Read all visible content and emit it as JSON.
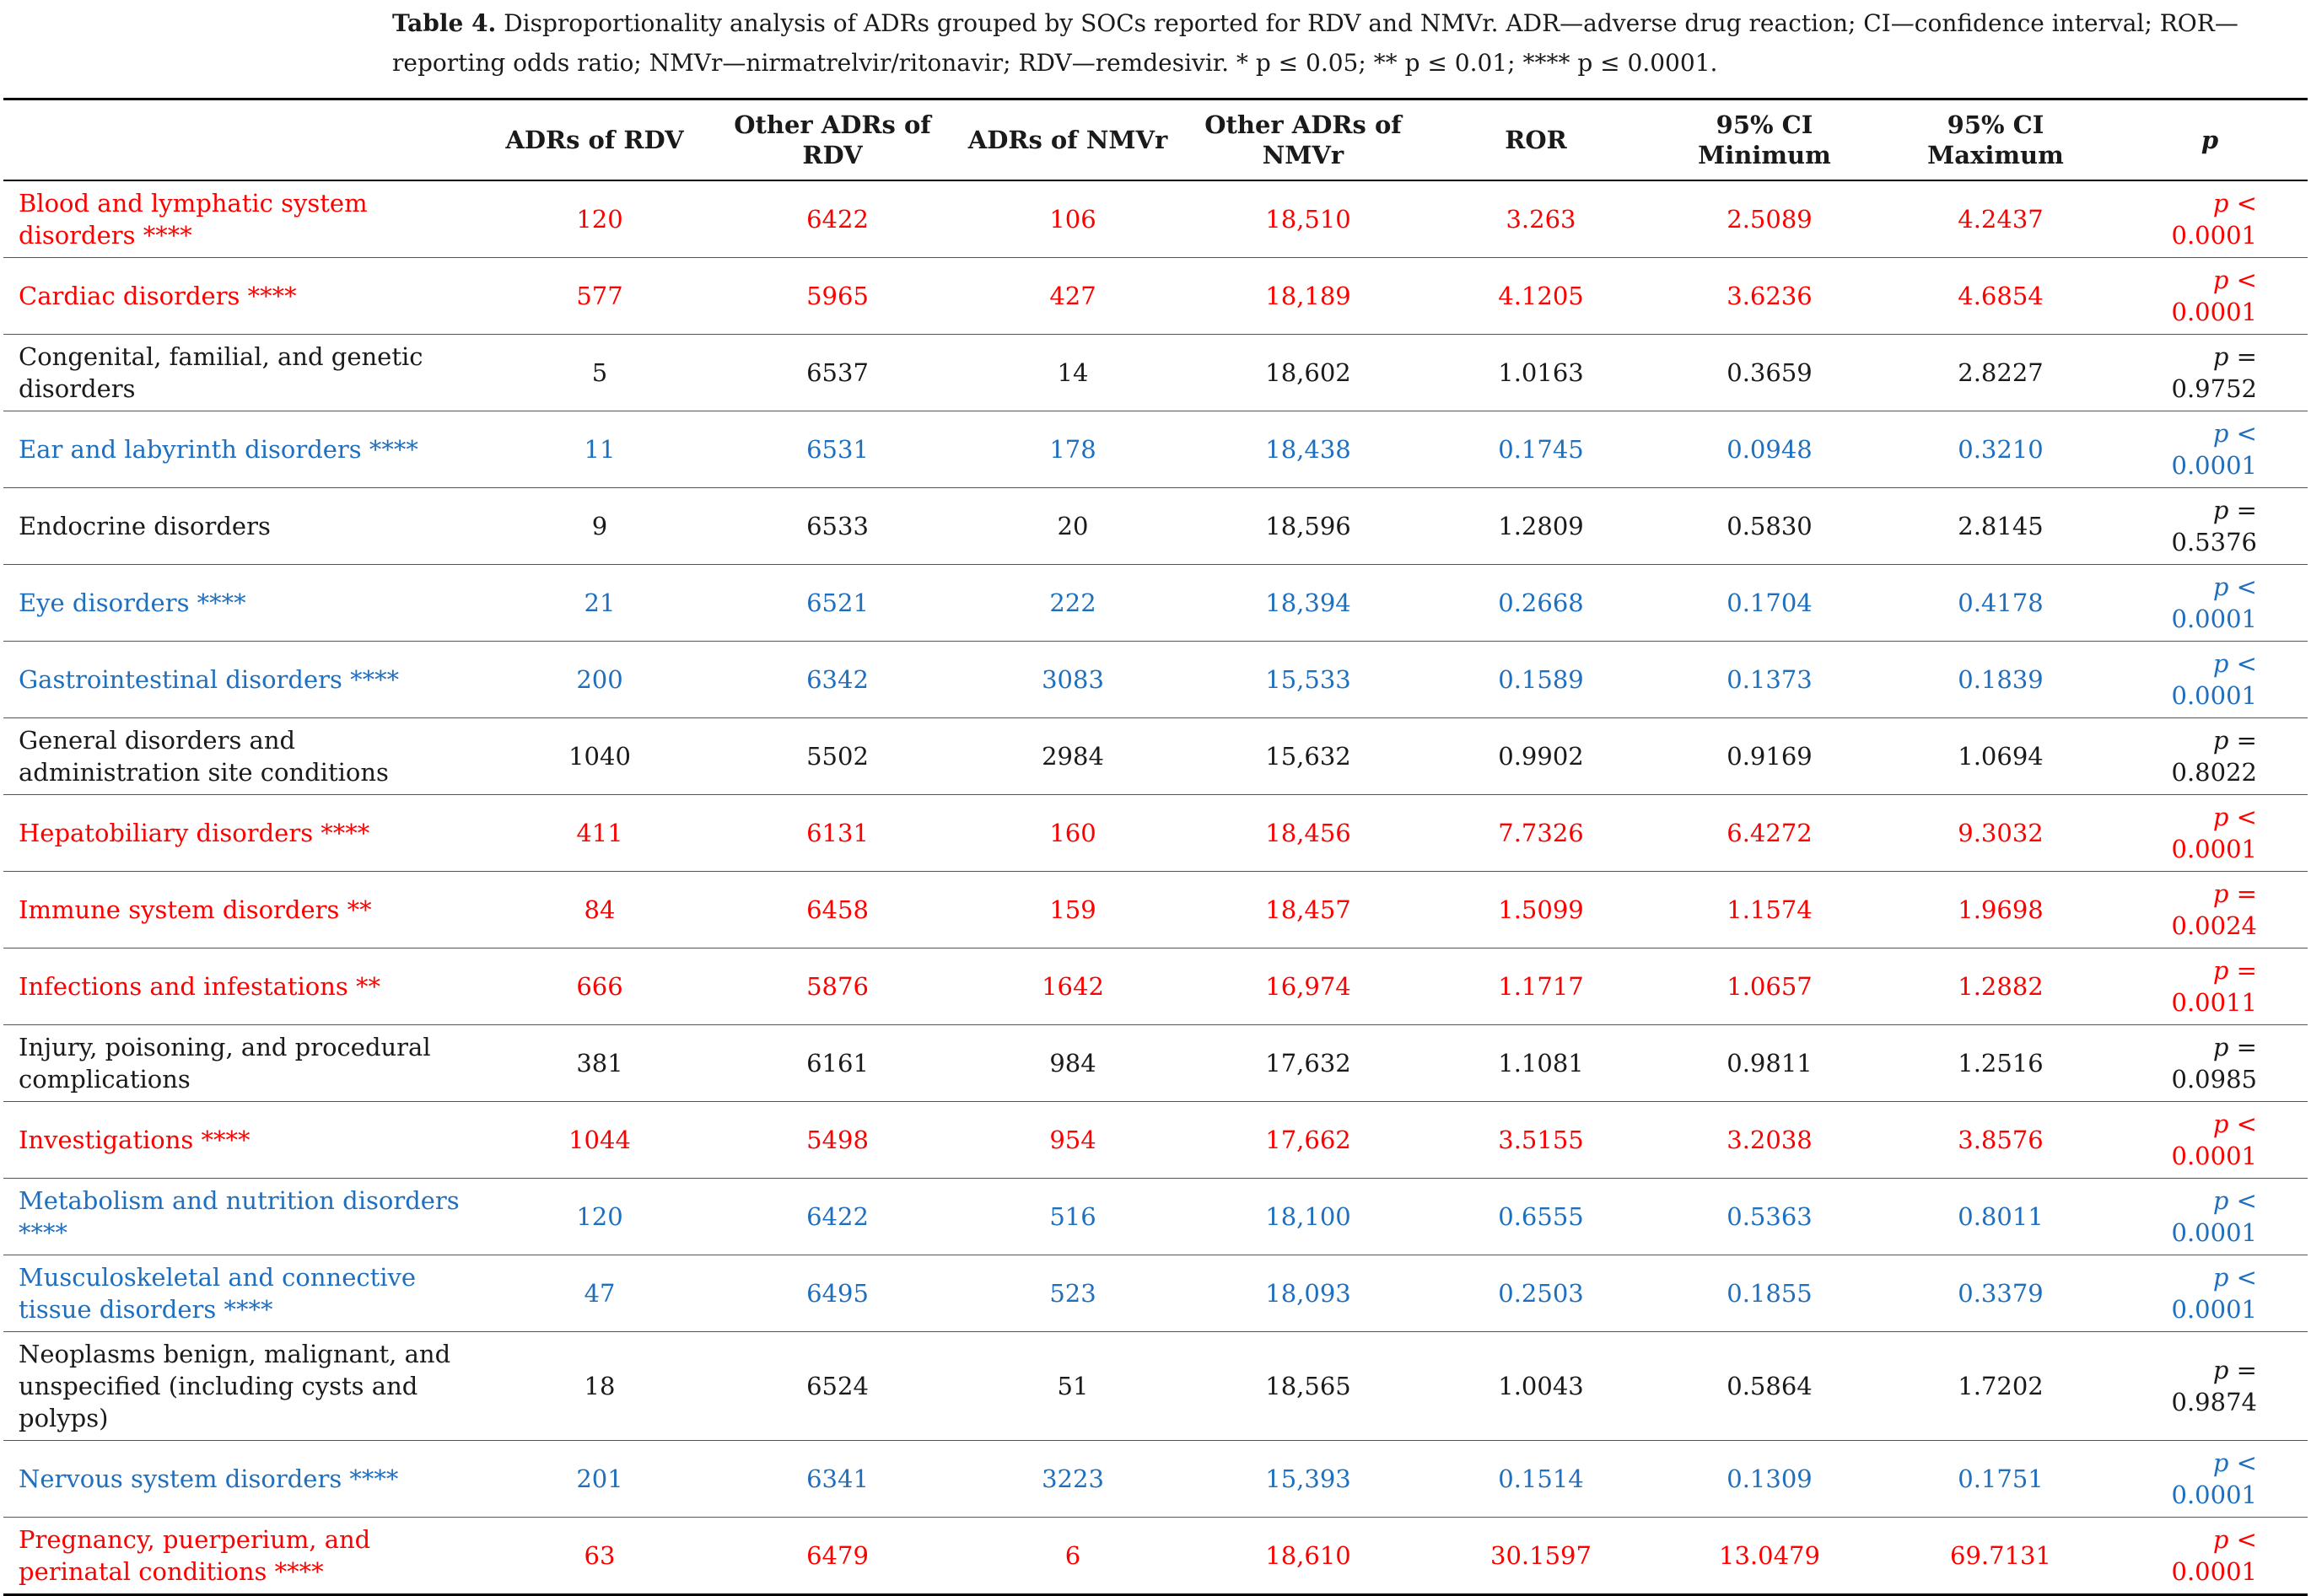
{
  "caption": {
    "label": "Table 4.",
    "text": " Disproportionality analysis of ADRs grouped by SOCs reported for RDV and NMVr. ADR—adverse drug reaction; CI—confidence interval; ROR—reporting odds ratio; NMVr—nirmatrelvir/ritonavir; RDV—remdesivir. * p ≤ 0.05; ** p ≤ 0.01; **** p ≤ 0.0001."
  },
  "colors": {
    "increased": "#ff0000",
    "decreased": "#1f6fbf",
    "neutral": "#1a1a1a"
  },
  "table": {
    "headers": [
      "",
      "ADRs of RDV",
      "Other ADRs of RDV",
      "ADRs of NMVr",
      "Other ADRs of NMVr",
      "ROR",
      "95% CI Minimum",
      "95% CI Maximum",
      "p"
    ],
    "rows": [
      {
        "color": "red",
        "cells": [
          "Blood and lymphatic system disorders ****",
          "120",
          "6422",
          "106",
          "18,510",
          "3.263",
          "2.5089",
          "4.2437",
          "< 0.0001"
        ]
      },
      {
        "color": "red",
        "cells": [
          "Cardiac disorders ****",
          "577",
          "5965",
          "427",
          "18,189",
          "4.1205",
          "3.6236",
          "4.6854",
          "< 0.0001"
        ]
      },
      {
        "color": "black",
        "cells": [
          "Congenital, familial, and genetic disorders",
          "5",
          "6537",
          "14",
          "18,602",
          "1.0163",
          "0.3659",
          "2.8227",
          "= 0.9752"
        ]
      },
      {
        "color": "blue",
        "cells": [
          "Ear and labyrinth disorders ****",
          "11",
          "6531",
          "178",
          "18,438",
          "0.1745",
          "0.0948",
          "0.3210",
          "< 0.0001"
        ]
      },
      {
        "color": "black",
        "cells": [
          "Endocrine disorders",
          "9",
          "6533",
          "20",
          "18,596",
          "1.2809",
          "0.5830",
          "2.8145",
          "= 0.5376"
        ]
      },
      {
        "color": "blue",
        "cells": [
          "Eye disorders ****",
          "21",
          "6521",
          "222",
          "18,394",
          "0.2668",
          "0.1704",
          "0.4178",
          "< 0.0001"
        ]
      },
      {
        "color": "blue",
        "cells": [
          "Gastrointestinal disorders ****",
          "200",
          "6342",
          "3083",
          "15,533",
          "0.1589",
          "0.1373",
          "0.1839",
          "< 0.0001"
        ]
      },
      {
        "color": "black",
        "cells": [
          "General disorders and administration site conditions",
          "1040",
          "5502",
          "2984",
          "15,632",
          "0.9902",
          "0.9169",
          "1.0694",
          "= 0.8022"
        ]
      },
      {
        "color": "red",
        "cells": [
          "Hepatobiliary disorders ****",
          "411",
          "6131",
          "160",
          "18,456",
          "7.7326",
          "6.4272",
          "9.3032",
          "< 0.0001"
        ]
      },
      {
        "color": "red",
        "cells": [
          "Immune system disorders **",
          "84",
          "6458",
          "159",
          "18,457",
          "1.5099",
          "1.1574",
          "1.9698",
          "= 0.0024"
        ]
      },
      {
        "color": "red",
        "cells": [
          "Infections and infestations **",
          "666",
          "5876",
          "1642",
          "16,974",
          "1.1717",
          "1.0657",
          "1.2882",
          "= 0.0011"
        ]
      },
      {
        "color": "black",
        "cells": [
          "Injury, poisoning, and procedural complications",
          "381",
          "6161",
          "984",
          "17,632",
          "1.1081",
          "0.9811",
          "1.2516",
          "= 0.0985"
        ]
      },
      {
        "color": "red",
        "cells": [
          "Investigations ****",
          "1044",
          "5498",
          "954",
          "17,662",
          "3.5155",
          "3.2038",
          "3.8576",
          "< 0.0001"
        ]
      },
      {
        "color": "blue",
        "cells": [
          "Metabolism and nutrition disorders ****",
          "120",
          "6422",
          "516",
          "18,100",
          "0.6555",
          "0.5363",
          "0.8011",
          "< 0.0001"
        ]
      },
      {
        "color": "blue",
        "cells": [
          "Musculoskeletal and connective tissue disorders ****",
          "47",
          "6495",
          "523",
          "18,093",
          "0.2503",
          "0.1855",
          "0.3379",
          "< 0.0001"
        ]
      },
      {
        "color": "black",
        "cells": [
          "Neoplasms benign, malignant, and unspecified (including cysts and polyps)",
          "18",
          "6524",
          "51",
          "18,565",
          "1.0043",
          "0.5864",
          "1.7202",
          "= 0.9874"
        ]
      },
      {
        "color": "blue",
        "cells": [
          "Nervous system disorders ****",
          "201",
          "6341",
          "3223",
          "15,393",
          "0.1514",
          "0.1309",
          "0.1751",
          "< 0.0001"
        ]
      },
      {
        "color": "red",
        "cells": [
          "Pregnancy, puerperium, and perinatal conditions ****",
          "63",
          "6479",
          "6",
          "18,610",
          "30.1597",
          "13.0479",
          "69.7131",
          "< 0.0001"
        ]
      }
    ]
  }
}
